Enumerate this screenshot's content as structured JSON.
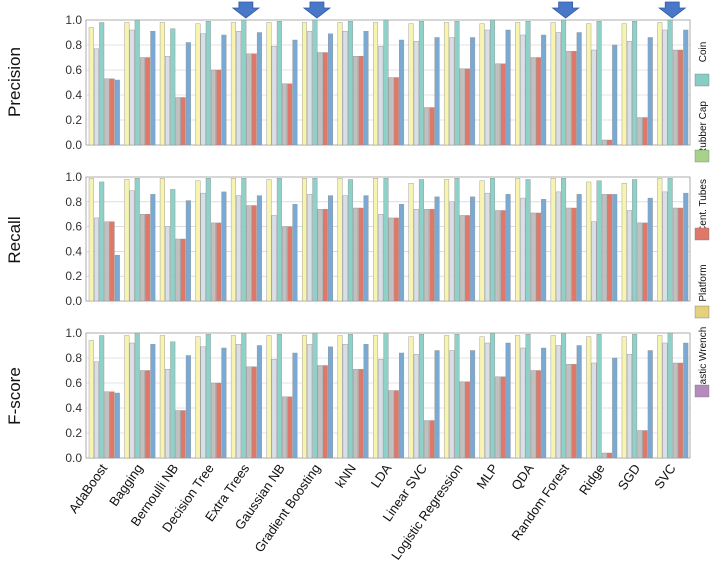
{
  "chart_data": {
    "type": "bar",
    "categories": [
      "AdaBoost",
      "Bagging",
      "Bernoulli NB",
      "Decision Tree",
      "Extra Trees",
      "Gaussian NB",
      "Gradient Boosting",
      "kNN",
      "LDA",
      "Linear SVC",
      "Logistic Regression",
      "MLP",
      "QDA",
      "Random Forest",
      "Ridge",
      "SGD",
      "SVC"
    ],
    "ylim": [
      0,
      1.0
    ],
    "yticks": [
      "0.0",
      "0.2",
      "0.4",
      "0.6",
      "0.8",
      "1.0"
    ],
    "grid": true,
    "legend_position": "right",
    "series": [
      {
        "name": "Platform",
        "color": "#f7f3b0"
      },
      {
        "name": "Cent. Tubes",
        "color": "#d9dfe6"
      },
      {
        "name": "Rubber Cap",
        "color": "#8ed1c8"
      },
      {
        "name": "Plastic Wrench",
        "color": "#c0c0c0"
      },
      {
        "name": "Cent. Tubes ",
        "color": "#e0786a"
      },
      {
        "name": "Coin",
        "color": "#7aa9d4"
      }
    ],
    "legend": [
      {
        "label": "Coin",
        "color": "#89cbc5"
      },
      {
        "label": "Rubber Cap",
        "color": "#a7d28a"
      },
      {
        "label": "Cent. Tubes",
        "color": "#e0786a"
      },
      {
        "label": "Platform",
        "color": "#e3d17c"
      },
      {
        "label": "Plastic Wrench",
        "color": "#b58bbd"
      }
    ],
    "highlighted_categories": [
      "Extra Trees",
      "Gradient Boosting",
      "Random Forest",
      "SVC"
    ],
    "panels": [
      {
        "ylabel": "Precision",
        "values": [
          [
            0.94,
            0.77,
            0.98,
            0.53,
            0.53,
            0.52
          ],
          [
            0.98,
            0.92,
            1.0,
            0.7,
            0.7,
            0.91
          ],
          [
            0.98,
            0.71,
            0.93,
            0.38,
            0.38,
            0.82
          ],
          [
            0.97,
            0.89,
            0.99,
            0.6,
            0.6,
            0.88
          ],
          [
            0.98,
            0.91,
            1.0,
            0.73,
            0.73,
            0.9
          ],
          [
            0.98,
            0.79,
            0.99,
            0.49,
            0.49,
            0.84
          ],
          [
            0.98,
            0.91,
            1.0,
            0.74,
            0.74,
            0.89
          ],
          [
            0.98,
            0.91,
            0.99,
            0.71,
            0.71,
            0.91
          ],
          [
            0.98,
            0.79,
            1.0,
            0.54,
            0.54,
            0.84
          ],
          [
            0.97,
            0.83,
            0.99,
            0.3,
            0.3,
            0.86
          ],
          [
            0.98,
            0.86,
            0.99,
            0.61,
            0.61,
            0.86
          ],
          [
            0.97,
            0.92,
            1.0,
            0.65,
            0.65,
            0.92
          ],
          [
            0.98,
            0.88,
            0.99,
            0.7,
            0.7,
            0.88
          ],
          [
            0.98,
            0.9,
            1.0,
            0.75,
            0.75,
            0.9
          ],
          [
            0.97,
            0.76,
            0.99,
            0.04,
            0.04,
            0.8
          ],
          [
            0.97,
            0.83,
            0.99,
            0.22,
            0.22,
            0.86
          ],
          [
            0.98,
            0.92,
            1.0,
            0.76,
            0.76,
            0.92
          ]
        ]
      },
      {
        "ylabel": "Recall",
        "values": [
          [
            0.99,
            0.67,
            0.96,
            0.64,
            0.64,
            0.37
          ],
          [
            0.98,
            0.89,
            0.99,
            0.7,
            0.7,
            0.86
          ],
          [
            0.99,
            0.6,
            0.9,
            0.5,
            0.5,
            0.81
          ],
          [
            0.97,
            0.87,
            0.99,
            0.63,
            0.63,
            0.88
          ],
          [
            0.99,
            0.85,
            0.99,
            0.77,
            0.77,
            0.85
          ],
          [
            0.98,
            0.69,
            0.99,
            0.6,
            0.6,
            0.78
          ],
          [
            0.99,
            0.86,
            0.99,
            0.74,
            0.74,
            0.85
          ],
          [
            0.99,
            0.85,
            0.98,
            0.75,
            0.75,
            0.85
          ],
          [
            0.99,
            0.7,
            0.99,
            0.67,
            0.67,
            0.78
          ],
          [
            0.95,
            0.74,
            0.98,
            0.74,
            0.74,
            0.84
          ],
          [
            0.98,
            0.8,
            0.99,
            0.69,
            0.69,
            0.84
          ],
          [
            0.97,
            0.87,
            0.99,
            0.73,
            0.73,
            0.86
          ],
          [
            0.99,
            0.83,
            0.98,
            0.71,
            0.71,
            0.82
          ],
          [
            0.99,
            0.88,
            0.99,
            0.75,
            0.75,
            0.86
          ],
          [
            0.96,
            0.64,
            0.97,
            0.86,
            0.86,
            0.86
          ],
          [
            0.95,
            0.73,
            0.98,
            0.63,
            0.63,
            0.83
          ],
          [
            0.99,
            0.88,
            0.99,
            0.75,
            0.75,
            0.87
          ]
        ]
      },
      {
        "ylabel": "F-score",
        "values": [
          [
            0.94,
            0.77,
            0.98,
            0.53,
            0.53,
            0.52
          ],
          [
            0.98,
            0.92,
            1.0,
            0.7,
            0.7,
            0.91
          ],
          [
            0.98,
            0.71,
            0.93,
            0.38,
            0.38,
            0.82
          ],
          [
            0.97,
            0.89,
            0.99,
            0.6,
            0.6,
            0.88
          ],
          [
            0.98,
            0.91,
            1.0,
            0.73,
            0.73,
            0.9
          ],
          [
            0.98,
            0.79,
            0.99,
            0.49,
            0.49,
            0.84
          ],
          [
            0.98,
            0.91,
            1.0,
            0.74,
            0.74,
            0.89
          ],
          [
            0.98,
            0.91,
            0.99,
            0.71,
            0.71,
            0.91
          ],
          [
            0.98,
            0.79,
            1.0,
            0.54,
            0.54,
            0.84
          ],
          [
            0.97,
            0.83,
            0.99,
            0.3,
            0.3,
            0.86
          ],
          [
            0.98,
            0.86,
            0.99,
            0.61,
            0.61,
            0.86
          ],
          [
            0.97,
            0.92,
            1.0,
            0.65,
            0.65,
            0.92
          ],
          [
            0.98,
            0.88,
            0.99,
            0.7,
            0.7,
            0.88
          ],
          [
            0.98,
            0.9,
            1.0,
            0.75,
            0.75,
            0.9
          ],
          [
            0.97,
            0.76,
            0.99,
            0.04,
            0.04,
            0.8
          ],
          [
            0.97,
            0.83,
            0.99,
            0.22,
            0.22,
            0.86
          ],
          [
            0.98,
            0.92,
            1.0,
            0.76,
            0.76,
            0.92
          ]
        ]
      }
    ]
  }
}
